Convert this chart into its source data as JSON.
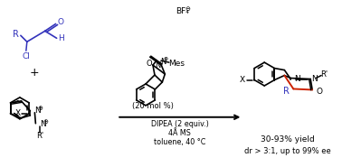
{
  "bg_color": "#ffffff",
  "text_color": "#000000",
  "blue_color": "#3333bb",
  "red_color": "#cc2200",
  "figsize": [
    3.78,
    1.85
  ],
  "dpi": 100,
  "conditions": [
    "DIPEA (2 equiv.)",
    "4Å MS",
    "toluene, 40 °C"
  ],
  "catalyst_note": "(20 mol %)",
  "bf4_text": "BF",
  "yield_text": "30-93% yield",
  "dr_text": "dr > 3:1, up to 99% ee"
}
